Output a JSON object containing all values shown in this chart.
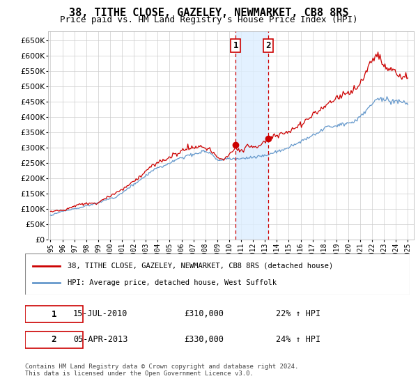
{
  "title": "38, TITHE CLOSE, GAZELEY, NEWMARKET, CB8 8RS",
  "subtitle": "Price paid vs. HM Land Registry's House Price Index (HPI)",
  "ylabel_ticks": [
    0,
    50000,
    100000,
    150000,
    200000,
    250000,
    300000,
    350000,
    400000,
    450000,
    500000,
    550000,
    600000,
    650000
  ],
  "ylim": [
    0,
    680000
  ],
  "xlim_start": 1994.8,
  "xlim_end": 2025.5,
  "transaction1": {
    "date_num": 2010.54,
    "price": 310000,
    "label": "1",
    "date_str": "15-JUL-2010",
    "pct": "22% ↑ HPI"
  },
  "transaction2": {
    "date_num": 2013.26,
    "price": 330000,
    "label": "2",
    "date_str": "05-APR-2013",
    "pct": "24% ↑ HPI"
  },
  "property_color": "#cc0000",
  "hpi_color": "#6699cc",
  "grid_color": "#cccccc",
  "background_color": "#ffffff",
  "shade_color": "#ddeeff",
  "legend_label1": "38, TITHE CLOSE, GAZELEY, NEWMARKET, CB8 8RS (detached house)",
  "legend_label2": "HPI: Average price, detached house, West Suffolk",
  "footnote": "Contains HM Land Registry data © Crown copyright and database right 2024.\nThis data is licensed under the Open Government Licence v3.0.",
  "xtick_years": [
    1995,
    1996,
    1997,
    1998,
    1999,
    2000,
    2001,
    2002,
    2003,
    2004,
    2005,
    2006,
    2007,
    2008,
    2009,
    2010,
    2011,
    2012,
    2013,
    2014,
    2015,
    2016,
    2017,
    2018,
    2019,
    2020,
    2021,
    2022,
    2023,
    2024,
    2025
  ]
}
